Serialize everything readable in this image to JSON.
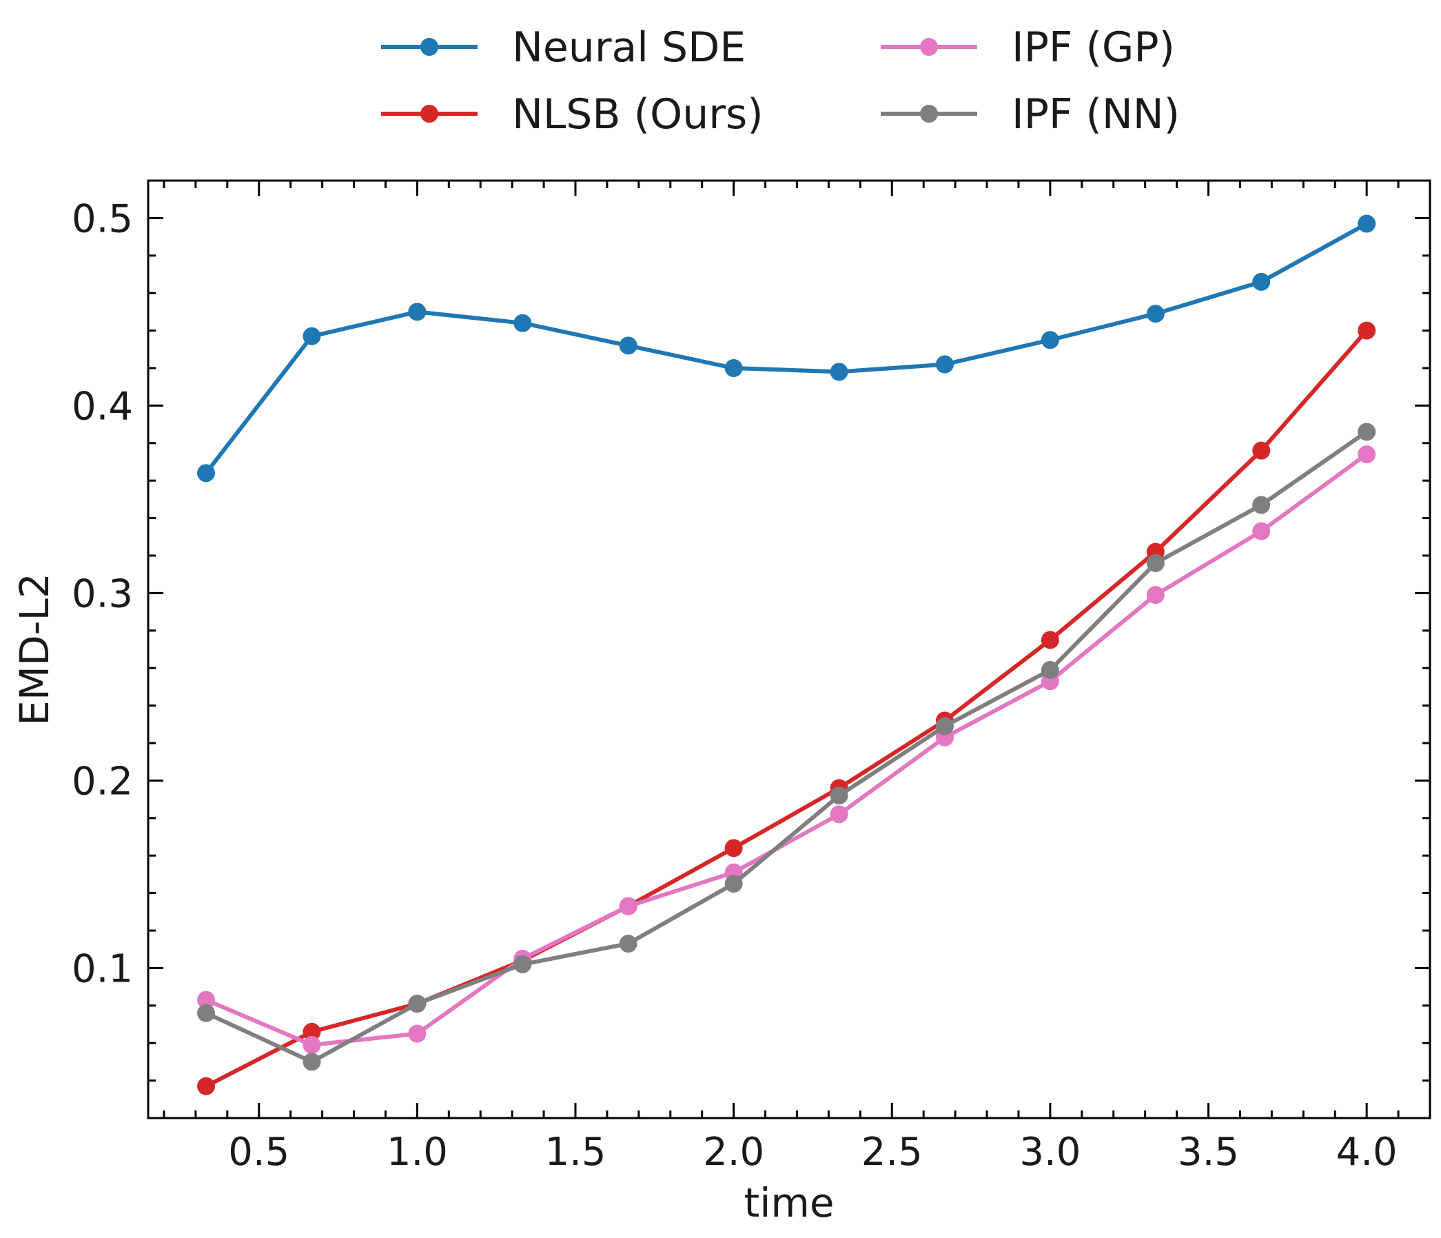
{
  "chart_data": {
    "type": "line",
    "xlabel": "time",
    "ylabel": "EMD-L2",
    "xlim": [
      0.15,
      4.2
    ],
    "ylim": [
      0.02,
      0.52
    ],
    "x_ticks": [
      0.5,
      1.0,
      1.5,
      2.0,
      2.5,
      3.0,
      3.5,
      4.0
    ],
    "x_tick_labels": [
      "0.5",
      "1.0",
      "1.5",
      "2.0",
      "2.5",
      "3.0",
      "3.5",
      "4.0"
    ],
    "y_ticks": [
      0.1,
      0.2,
      0.3,
      0.4,
      0.5
    ],
    "y_tick_labels": [
      "0.1",
      "0.2",
      "0.3",
      "0.4",
      "0.5"
    ],
    "grid": false,
    "legend_position": "top-center",
    "x": [
      0.333,
      0.667,
      1.0,
      1.333,
      1.667,
      2.0,
      2.333,
      2.667,
      3.0,
      3.333,
      3.667,
      4.0
    ],
    "series": [
      {
        "name": "Neural SDE",
        "color": "#1f77b4",
        "values": [
          0.364,
          0.437,
          0.45,
          0.444,
          0.432,
          0.42,
          0.418,
          0.422,
          0.435,
          0.449,
          0.466,
          0.497
        ]
      },
      {
        "name": "NLSB (Ours)",
        "color": "#d62728",
        "values": [
          0.037,
          0.066,
          0.081,
          0.104,
          0.133,
          0.164,
          0.196,
          0.232,
          0.275,
          0.322,
          0.376,
          0.44
        ]
      },
      {
        "name": "IPF (GP)",
        "color": "#e377c2",
        "values": [
          0.083,
          0.059,
          0.065,
          0.105,
          0.133,
          0.151,
          0.182,
          0.223,
          0.253,
          0.299,
          0.333,
          0.374
        ]
      },
      {
        "name": "IPF (NN)",
        "color": "#7f7f7f",
        "values": [
          0.076,
          0.05,
          0.081,
          0.102,
          0.113,
          0.145,
          0.192,
          0.229,
          0.259,
          0.316,
          0.347,
          0.386
        ]
      }
    ]
  }
}
